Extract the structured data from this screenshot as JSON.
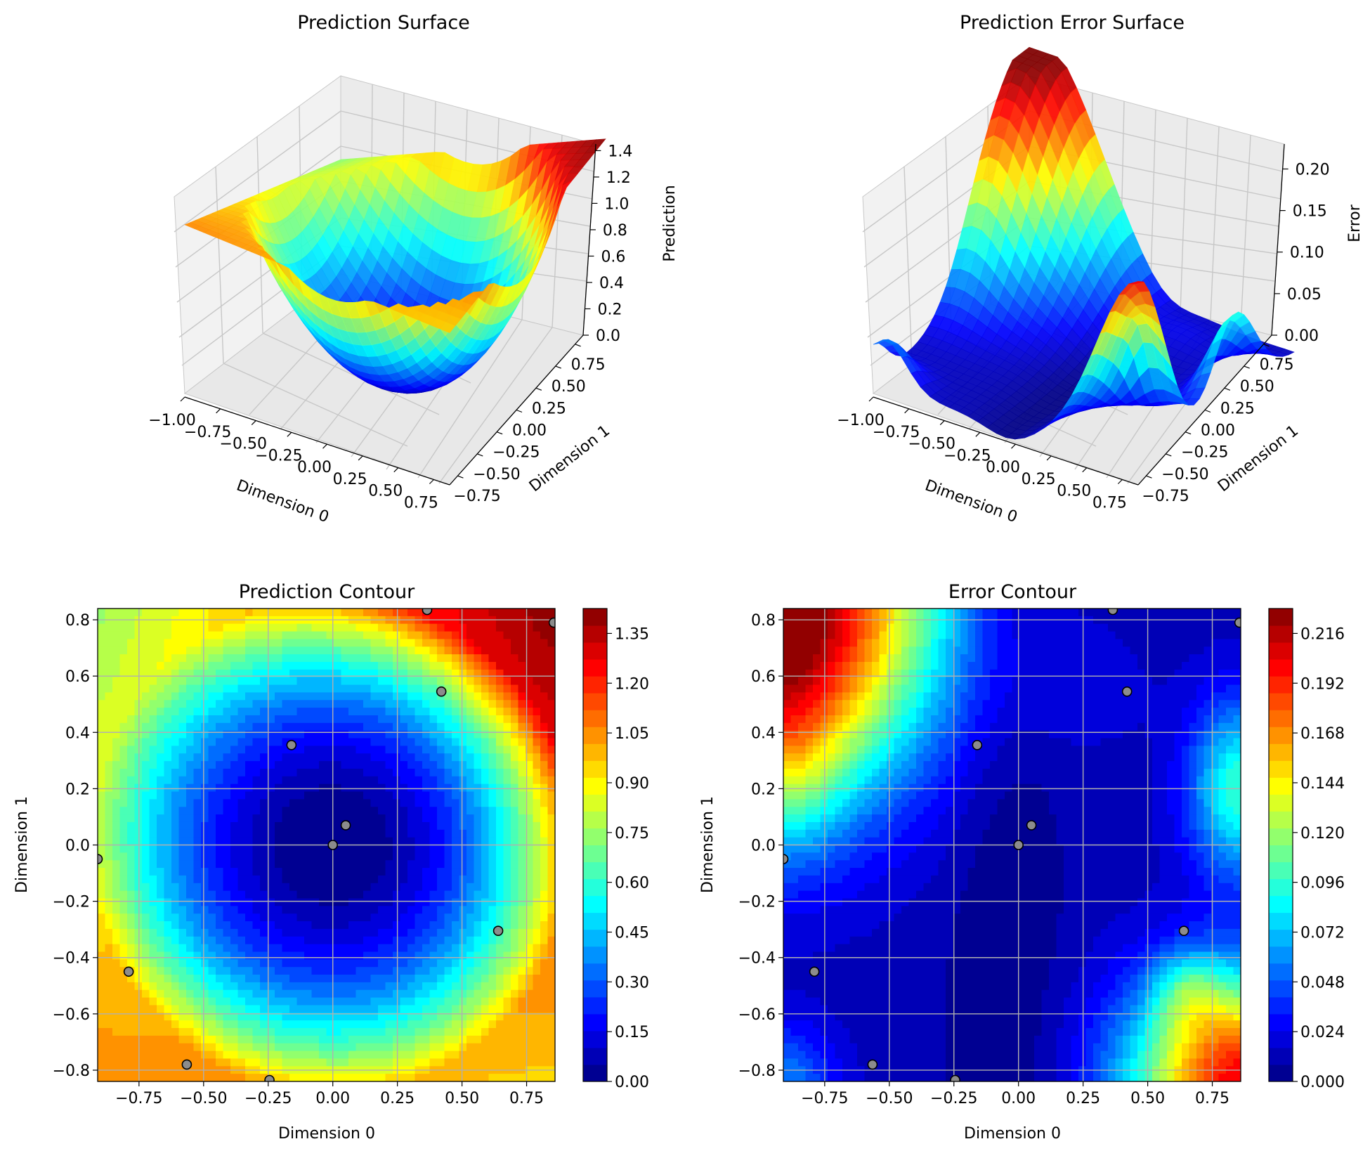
{
  "chart_data": [
    {
      "type": "surface3d",
      "title": "Prediction Surface",
      "xlabel": "Dimension 0",
      "ylabel": "Dimension 1",
      "zlabel": "Prediction",
      "colormap": "jet",
      "xlim": [
        -1.0,
        0.85
      ],
      "ylim": [
        -0.84,
        0.84
      ],
      "zlim": [
        0.0,
        1.45
      ],
      "xticks": [
        "−1.00",
        "−0.75",
        "−0.50",
        "−0.25",
        "0.00",
        "0.25",
        "0.50",
        "0.75"
      ],
      "yticks": [
        "−0.75",
        "−0.50",
        "−0.25",
        "0.00",
        "0.25",
        "0.50",
        "0.75"
      ],
      "zticks": [
        "0.0",
        "0.2",
        "0.4",
        "0.6",
        "0.8",
        "1.0",
        "1.2",
        "1.4"
      ],
      "z_min": 0.0,
      "z_max": 1.42
    },
    {
      "type": "surface3d",
      "title": "Prediction Error Surface",
      "xlabel": "Dimension 0",
      "ylabel": "Dimension 1",
      "zlabel": "Error",
      "colormap": "jet",
      "xlim": [
        -1.0,
        0.85
      ],
      "ylim": [
        -0.84,
        0.84
      ],
      "zlim": [
        0.0,
        0.23
      ],
      "xticks": [
        "−1.00",
        "−0.75",
        "−0.50",
        "−0.25",
        "0.00",
        "0.25",
        "0.50",
        "0.75"
      ],
      "yticks": [
        "−0.75",
        "−0.50",
        "−0.25",
        "0.00",
        "0.25",
        "0.50",
        "0.75"
      ],
      "zticks": [
        "0.00",
        "0.05",
        "0.10",
        "0.15",
        "0.20"
      ],
      "z_min": 0.0,
      "z_max": 0.225
    },
    {
      "type": "contour",
      "title": "Prediction Contour",
      "xlabel": "Dimension 0",
      "ylabel": "Dimension 1",
      "colormap": "jet",
      "grid": true,
      "xlim": [
        -0.91,
        0.86
      ],
      "ylim": [
        -0.84,
        0.84
      ],
      "xticks": [
        "−0.75",
        "−0.50",
        "−0.25",
        "0.00",
        "0.25",
        "0.50",
        "0.75"
      ],
      "yticks": [
        "−0.8",
        "−0.6",
        "−0.4",
        "−0.2",
        "0.0",
        "0.2",
        "0.4",
        "0.6",
        "0.8"
      ],
      "colorbar_ticks": [
        "0.00",
        "0.15",
        "0.30",
        "0.45",
        "0.60",
        "0.75",
        "0.90",
        "1.05",
        "1.20",
        "1.35"
      ],
      "colorbar_range": [
        0.0,
        1.425
      ],
      "levels": 28,
      "points": [
        {
          "x": 0.0,
          "y": 0.0
        },
        {
          "x": 0.05,
          "y": 0.07
        },
        {
          "x": -0.16,
          "y": 0.355
        },
        {
          "x": 0.42,
          "y": 0.545
        },
        {
          "x": 0.365,
          "y": 0.835
        },
        {
          "x": 0.855,
          "y": 0.79
        },
        {
          "x": -0.91,
          "y": -0.05
        },
        {
          "x": 0.64,
          "y": -0.305
        },
        {
          "x": -0.79,
          "y": -0.45
        },
        {
          "x": -0.565,
          "y": -0.78
        },
        {
          "x": -0.245,
          "y": -0.835
        }
      ]
    },
    {
      "type": "contour",
      "title": "Error Contour",
      "xlabel": "Dimension 0",
      "ylabel": "Dimension 1",
      "colormap": "jet",
      "grid": true,
      "xlim": [
        -0.91,
        0.86
      ],
      "ylim": [
        -0.84,
        0.84
      ],
      "xticks": [
        "−0.75",
        "−0.50",
        "−0.25",
        "0.00",
        "0.25",
        "0.50",
        "0.75"
      ],
      "yticks": [
        "−0.8",
        "−0.6",
        "−0.4",
        "−0.2",
        "0.0",
        "0.2",
        "0.4",
        "0.6",
        "0.8"
      ],
      "colorbar_ticks": [
        "0.000",
        "0.024",
        "0.048",
        "0.072",
        "0.096",
        "0.120",
        "0.144",
        "0.168",
        "0.192",
        "0.216"
      ],
      "colorbar_range": [
        0.0,
        0.228
      ],
      "levels": 28,
      "points": [
        {
          "x": 0.0,
          "y": 0.0
        },
        {
          "x": 0.05,
          "y": 0.07
        },
        {
          "x": -0.16,
          "y": 0.355
        },
        {
          "x": 0.42,
          "y": 0.545
        },
        {
          "x": 0.365,
          "y": 0.835
        },
        {
          "x": 0.855,
          "y": 0.79
        },
        {
          "x": -0.91,
          "y": -0.05
        },
        {
          "x": 0.64,
          "y": -0.305
        },
        {
          "x": -0.79,
          "y": -0.45
        },
        {
          "x": -0.565,
          "y": -0.78
        },
        {
          "x": -0.245,
          "y": -0.835
        }
      ]
    }
  ]
}
